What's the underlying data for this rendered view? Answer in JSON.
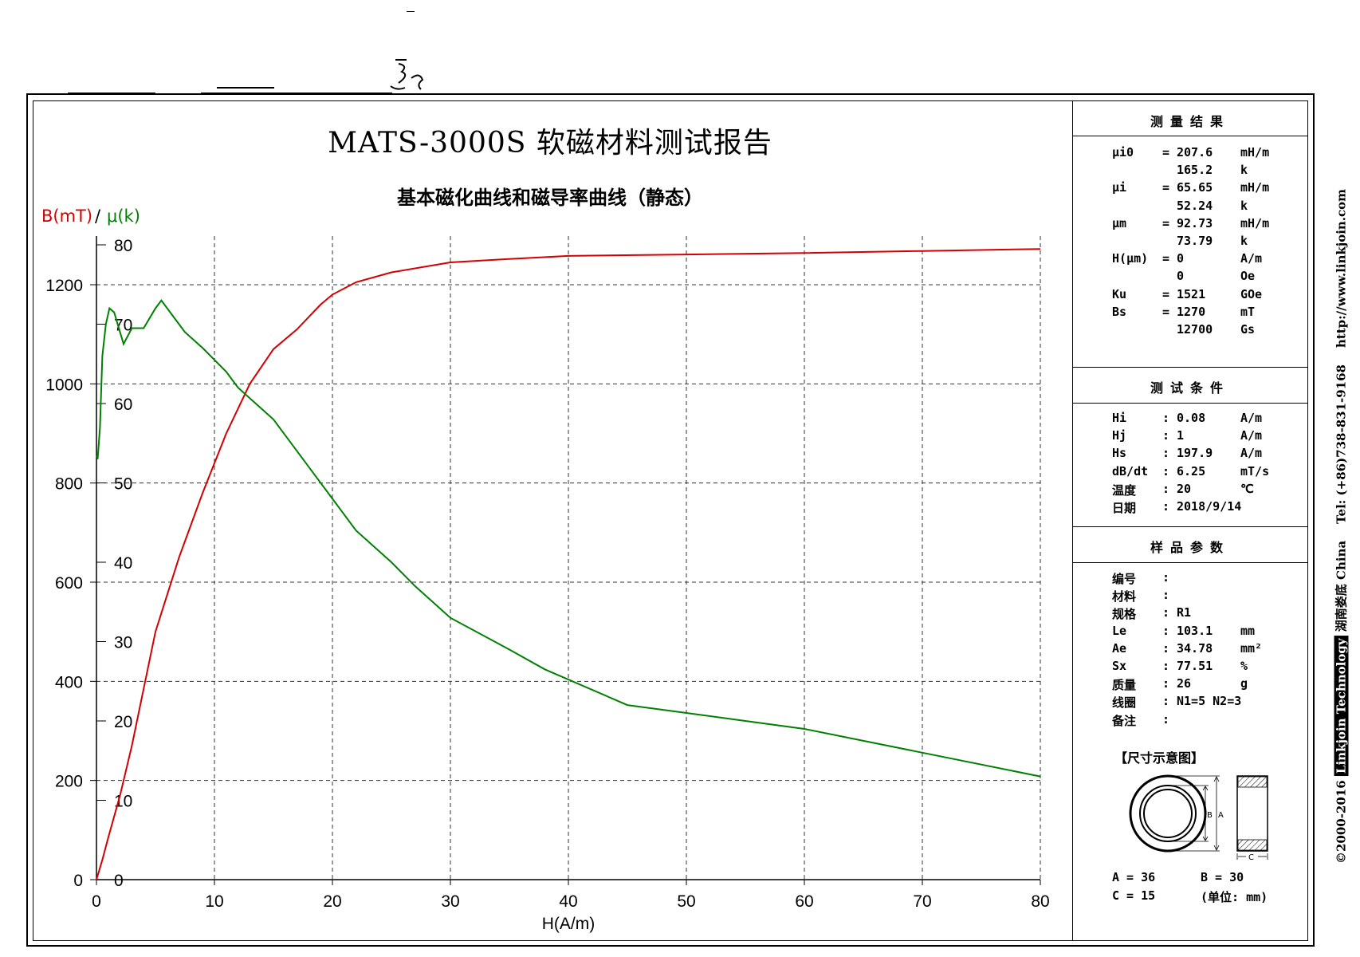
{
  "report_title": "MATS-3000S 软磁材料测试报告",
  "chart_title": "基本磁化曲线和磁导率曲线（静态）",
  "axis_label_b": "B(mT)",
  "axis_label_sep": "/",
  "axis_label_mu": "μ(k)",
  "side_text": {
    "copyright": "©2000-2016",
    "brand": "Linkjoin Technology",
    "location": "湖南娄底 China",
    "tel": "Tel: (+86)738-831-9168",
    "url": "http://www.linkjoin.com"
  },
  "results": {
    "header": "测量结果",
    "rows": [
      {
        "key": "μi0",
        "sep": "=",
        "value": "207.6",
        "unit": "mH/m"
      },
      {
        "key": "",
        "sep": "",
        "value": "165.2",
        "unit": "k"
      },
      {
        "key": "μi",
        "sep": "=",
        "value": "65.65",
        "unit": "mH/m"
      },
      {
        "key": "",
        "sep": "",
        "value": "52.24",
        "unit": "k"
      },
      {
        "key": "μm",
        "sep": "=",
        "value": "92.73",
        "unit": "mH/m"
      },
      {
        "key": "",
        "sep": "",
        "value": "73.79",
        "unit": "k"
      },
      {
        "key": "H(μm)",
        "sep": "=",
        "value": "0",
        "unit": "A/m"
      },
      {
        "key": "",
        "sep": "",
        "value": "0",
        "unit": "Oe"
      },
      {
        "key": "Ku",
        "sep": "=",
        "value": "1521",
        "unit": "GOe"
      },
      {
        "key": "Bs",
        "sep": "=",
        "value": "1270",
        "unit": "mT"
      },
      {
        "key": "",
        "sep": "",
        "value": "12700",
        "unit": "Gs"
      }
    ]
  },
  "conditions": {
    "header": "测试条件",
    "rows": [
      {
        "key": "Hi",
        "sep": ":",
        "value": "0.08",
        "unit": "A/m"
      },
      {
        "key": "Hj",
        "sep": ":",
        "value": "1",
        "unit": "A/m"
      },
      {
        "key": "Hs",
        "sep": ":",
        "value": "197.9",
        "unit": "A/m"
      },
      {
        "key": "dB/dt",
        "sep": ":",
        "value": "6.25",
        "unit": "mT/s"
      },
      {
        "key": "温度",
        "sep": ":",
        "value": "20",
        "unit": "℃"
      },
      {
        "key": "日期",
        "sep": ":",
        "value": "2018/9/14",
        "unit": ""
      }
    ]
  },
  "sample": {
    "header": "样品参数",
    "rows": [
      {
        "key": "编号",
        "sep": ":",
        "value": "",
        "unit": ""
      },
      {
        "key": "材料",
        "sep": ":",
        "value": "",
        "unit": ""
      },
      {
        "key": "规格",
        "sep": ":",
        "value": "R1",
        "unit": ""
      },
      {
        "key": "Le",
        "sep": ":",
        "value": "103.1",
        "unit": "mm"
      },
      {
        "key": "Ae",
        "sep": ":",
        "value": "34.78",
        "unit": "mm²"
      },
      {
        "key": "Sx",
        "sep": ":",
        "value": "77.51",
        "unit": "%"
      },
      {
        "key": "质量",
        "sep": ":",
        "value": "26",
        "unit": "g"
      },
      {
        "key": "线圈",
        "sep": ":",
        "value": "N1=5 N2=3",
        "unit": ""
      },
      {
        "key": "备注",
        "sep": ":",
        "value": "",
        "unit": ""
      }
    ]
  },
  "dimensions": {
    "caption": "【尺寸示意图】",
    "label_a": "A",
    "label_b": "B",
    "label_c": "C",
    "row1_left": "A = 36",
    "row1_right": "B = 30",
    "row2_left": "C = 15",
    "row2_right": "(单位: mm)"
  },
  "chart_data": {
    "type": "line",
    "title": "基本磁化曲线和磁导率曲线（静态）",
    "xlabel": "H(A/m)",
    "ylabel": "B(mT)",
    "y2label": "μ(k)",
    "xlim": [
      0,
      80
    ],
    "ylim": [
      0,
      1300
    ],
    "y2lim": [
      0,
      82
    ],
    "xticks": [
      0,
      10,
      20,
      30,
      40,
      50,
      60,
      70,
      80
    ],
    "yticks": [
      0,
      200,
      400,
      600,
      800,
      1000,
      1200
    ],
    "y2ticks": [
      0,
      10,
      20,
      30,
      40,
      50,
      60,
      70,
      80
    ],
    "grid": true,
    "series": [
      {
        "name": "B(mT)",
        "color": "#d40000",
        "axis": "left",
        "x": [
          0,
          0.5,
          1,
          2,
          3,
          5,
          7,
          9,
          11,
          13,
          15,
          17,
          19,
          20,
          22,
          25,
          30,
          35,
          40,
          50,
          60,
          70,
          80
        ],
        "y": [
          0,
          40,
          85,
          170,
          270,
          500,
          650,
          780,
          900,
          1000,
          1070,
          1110,
          1160,
          1180,
          1205,
          1225,
          1245,
          1252,
          1258,
          1261,
          1264,
          1268,
          1272
        ]
      },
      {
        "name": "μ(k)",
        "color": "#008000",
        "axis": "right",
        "x": [
          0,
          0.1,
          0.3,
          0.5,
          0.8,
          1.1,
          1.5,
          2.3,
          3,
          4,
          5,
          5.5,
          6.5,
          7.5,
          9,
          11,
          12,
          15,
          17,
          20,
          22,
          25,
          27,
          30,
          35,
          38,
          45,
          50,
          55,
          60,
          70,
          80
        ],
        "y": [
          53.5,
          53,
          57,
          66,
          70,
          72,
          71.5,
          67.5,
          69.5,
          69.5,
          72,
          73,
          71,
          69,
          67,
          64,
          62,
          58,
          54,
          48,
          44,
          40,
          37,
          33,
          29,
          26.5,
          22,
          21,
          20,
          19,
          16,
          13
        ]
      }
    ]
  }
}
